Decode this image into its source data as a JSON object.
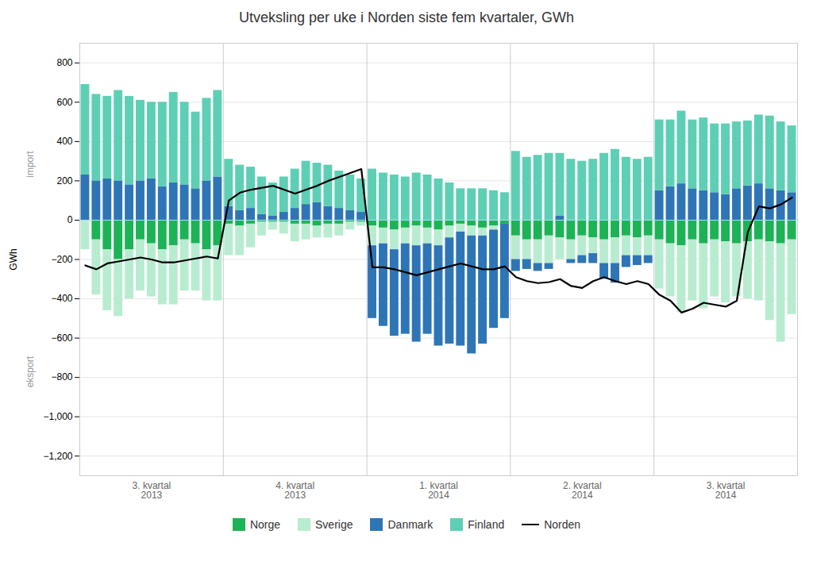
{
  "chart_data": {
    "type": "bar",
    "title": "Utveksling per uke i Norden siste fem kvartaler, GWh",
    "ylabel": "GWh",
    "annotations": [
      "import",
      "eksport"
    ],
    "categories": [
      null,
      null,
      null,
      null,
      null,
      null,
      null,
      null,
      null,
      null,
      null,
      null,
      null,
      null,
      null,
      null,
      null,
      null,
      null,
      null,
      null,
      null,
      null,
      null,
      null,
      null,
      null,
      null,
      null,
      null,
      null,
      null,
      null,
      null,
      null,
      null,
      null,
      null,
      null,
      null,
      null,
      null,
      null,
      null,
      null,
      null,
      null,
      null,
      null,
      null,
      null,
      null,
      null,
      null,
      null,
      null,
      null,
      null,
      null,
      null,
      null,
      null,
      null,
      null,
      null
    ],
    "category_groups": [
      {
        "label": "3. kvartal\n2013",
        "count": 13
      },
      {
        "label": "4. kvartal\n2013",
        "count": 13
      },
      {
        "label": "1. kvartal\n2014",
        "count": 13
      },
      {
        "label": "2. kvartal\n2014",
        "count": 13
      },
      {
        "label": "3. kvartal\n2014",
        "count": 13
      }
    ],
    "series": [
      {
        "name": "Norge",
        "type": "bar",
        "color": "#1cb356",
        "values": [
          0,
          -100,
          -150,
          -200,
          -150,
          -100,
          -120,
          -150,
          -130,
          -100,
          -120,
          -150,
          -130,
          -20,
          -30,
          -20,
          -10,
          -10,
          -10,
          -20,
          -20,
          -30,
          -20,
          -20,
          -10,
          -10,
          -30,
          -40,
          -50,
          -40,
          -30,
          -40,
          -50,
          -30,
          -20,
          -30,
          -40,
          -30,
          -20,
          -80,
          -100,
          -100,
          -80,
          -90,
          -100,
          -80,
          -90,
          -100,
          -90,
          -80,
          -90,
          -80,
          -100,
          -120,
          -130,
          -100,
          -120,
          -100,
          -110,
          -120,
          -110,
          -100,
          -110,
          -120,
          -100
        ]
      },
      {
        "name": "Sverige",
        "type": "bar",
        "color": "#b8ecd0",
        "values": [
          -150,
          -280,
          -310,
          -290,
          -250,
          -260,
          -270,
          -280,
          -300,
          -260,
          -240,
          -260,
          -280,
          -160,
          -150,
          -120,
          -70,
          -40,
          -60,
          -90,
          -80,
          -60,
          -70,
          -60,
          -40,
          -20,
          -100,
          -80,
          -100,
          -80,
          -100,
          -80,
          -80,
          -60,
          -40,
          -50,
          -40,
          -20,
          0,
          -120,
          -100,
          -120,
          -140,
          -110,
          -100,
          -100,
          -80,
          -120,
          -130,
          -100,
          -90,
          -100,
          -250,
          -270,
          -340,
          -310,
          -330,
          -290,
          -310,
          -270,
          -290,
          -310,
          -400,
          -500,
          -380
        ]
      },
      {
        "name": "Danmark",
        "type": "bar",
        "color": "#2e75b6",
        "values": [
          230,
          200,
          210,
          200,
          180,
          200,
          210,
          170,
          190,
          180,
          160,
          200,
          220,
          70,
          50,
          60,
          30,
          20,
          40,
          60,
          80,
          90,
          70,
          60,
          50,
          40,
          -370,
          -420,
          -440,
          -460,
          -490,
          -460,
          -510,
          -540,
          -580,
          -600,
          -550,
          -500,
          -480,
          -60,
          -50,
          -40,
          -30,
          20,
          -20,
          -40,
          -50,
          -80,
          -100,
          -60,
          -50,
          -40,
          150,
          170,
          185,
          160,
          150,
          140,
          130,
          160,
          175,
          185,
          160,
          150,
          140
        ]
      },
      {
        "name": "Finland",
        "type": "bar",
        "color": "#5dcfb5",
        "values": [
          460,
          440,
          420,
          460,
          450,
          410,
          390,
          430,
          460,
          420,
          390,
          420,
          440,
          240,
          230,
          210,
          190,
          170,
          180,
          200,
          220,
          200,
          210,
          190,
          180,
          170,
          260,
          240,
          230,
          220,
          240,
          230,
          210,
          190,
          160,
          160,
          160,
          150,
          140,
          350,
          320,
          330,
          340,
          320,
          310,
          300,
          310,
          340,
          360,
          320,
          310,
          320,
          360,
          340,
          370,
          350,
          370,
          350,
          360,
          340,
          330,
          350,
          370,
          350,
          340
        ]
      },
      {
        "name": "Norden",
        "type": "line",
        "color": "#000000",
        "values": [
          -230,
          -250,
          -220,
          -210,
          -200,
          -190,
          -200,
          -215,
          -215,
          -205,
          -195,
          -185,
          -195,
          100,
          140,
          155,
          165,
          175,
          155,
          135,
          155,
          175,
          200,
          220,
          240,
          260,
          -240,
          -240,
          -250,
          -265,
          -280,
          -265,
          -250,
          -235,
          -220,
          -235,
          -250,
          -250,
          -235,
          -290,
          -310,
          -320,
          -315,
          -300,
          -335,
          -345,
          -310,
          -290,
          -310,
          -325,
          -310,
          -325,
          -380,
          -410,
          -470,
          -450,
          -420,
          -430,
          -440,
          -410,
          -60,
          70,
          60,
          80,
          115
        ]
      }
    ],
    "stacked": true,
    "ylim": [
      -1300,
      900
    ],
    "yticks": [
      -1200,
      -1000,
      -800,
      -600,
      -400,
      -200,
      0,
      200,
      400,
      600,
      800
    ],
    "grid": true,
    "tick_labels": "y",
    "legend": "bottom"
  }
}
